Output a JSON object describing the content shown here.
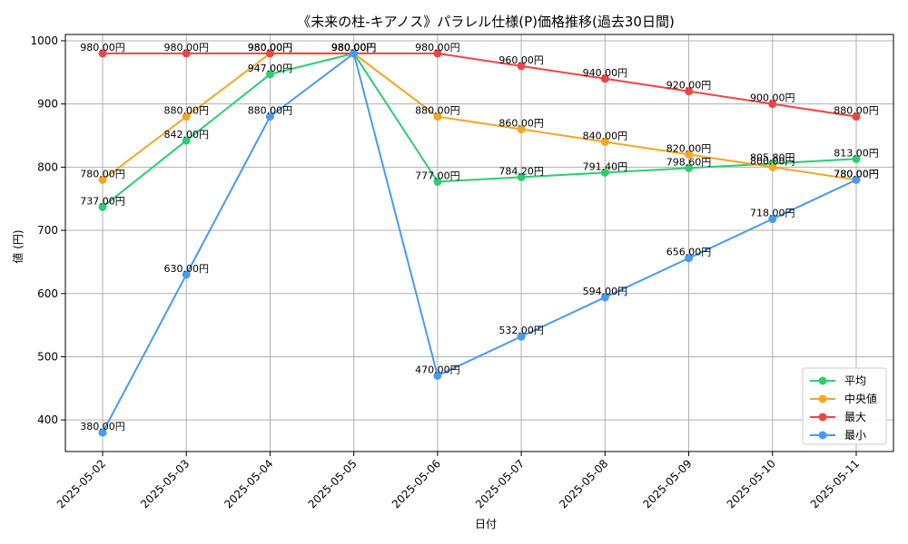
{
  "chart_data": {
    "type": "line",
    "title": "《未来の柱-キアノス》パラレル仕様(P)価格推移(過去30日間)",
    "xlabel": "日付",
    "ylabel": "値 (円)",
    "categories": [
      "2025-05-02",
      "2025-05-03",
      "2025-05-04",
      "2025-05-05",
      "2025-05-06",
      "2025-05-07",
      "2025-05-08",
      "2025-05-09",
      "2025-05-10",
      "2025-05-11"
    ],
    "ylim": [
      350,
      1010
    ],
    "yticks": [
      400,
      500,
      600,
      700,
      800,
      900,
      1000
    ],
    "grid": true,
    "legend_position": "bottom-right",
    "value_suffix": "円",
    "series": [
      {
        "name": "平均",
        "color": "#2ecc71",
        "values": [
          737.0,
          842.0,
          947.0,
          980.0,
          777.0,
          784.2,
          791.4,
          798.6,
          805.8,
          813.0
        ]
      },
      {
        "name": "中央値",
        "color": "#f5a623",
        "values": [
          780.0,
          880.0,
          980.0,
          980.0,
          880.0,
          860.0,
          840.0,
          820.0,
          800.0,
          780.0
        ]
      },
      {
        "name": "最大",
        "color": "#ef4444",
        "values": [
          980.0,
          980.0,
          980.0,
          980.0,
          980.0,
          960.0,
          940.0,
          920.0,
          900.0,
          880.0
        ]
      },
      {
        "name": "最小",
        "color": "#4a9af0",
        "values": [
          380.0,
          630.0,
          880.0,
          980.0,
          470.0,
          532.0,
          594.0,
          656.0,
          718.0,
          780.0
        ]
      }
    ]
  }
}
